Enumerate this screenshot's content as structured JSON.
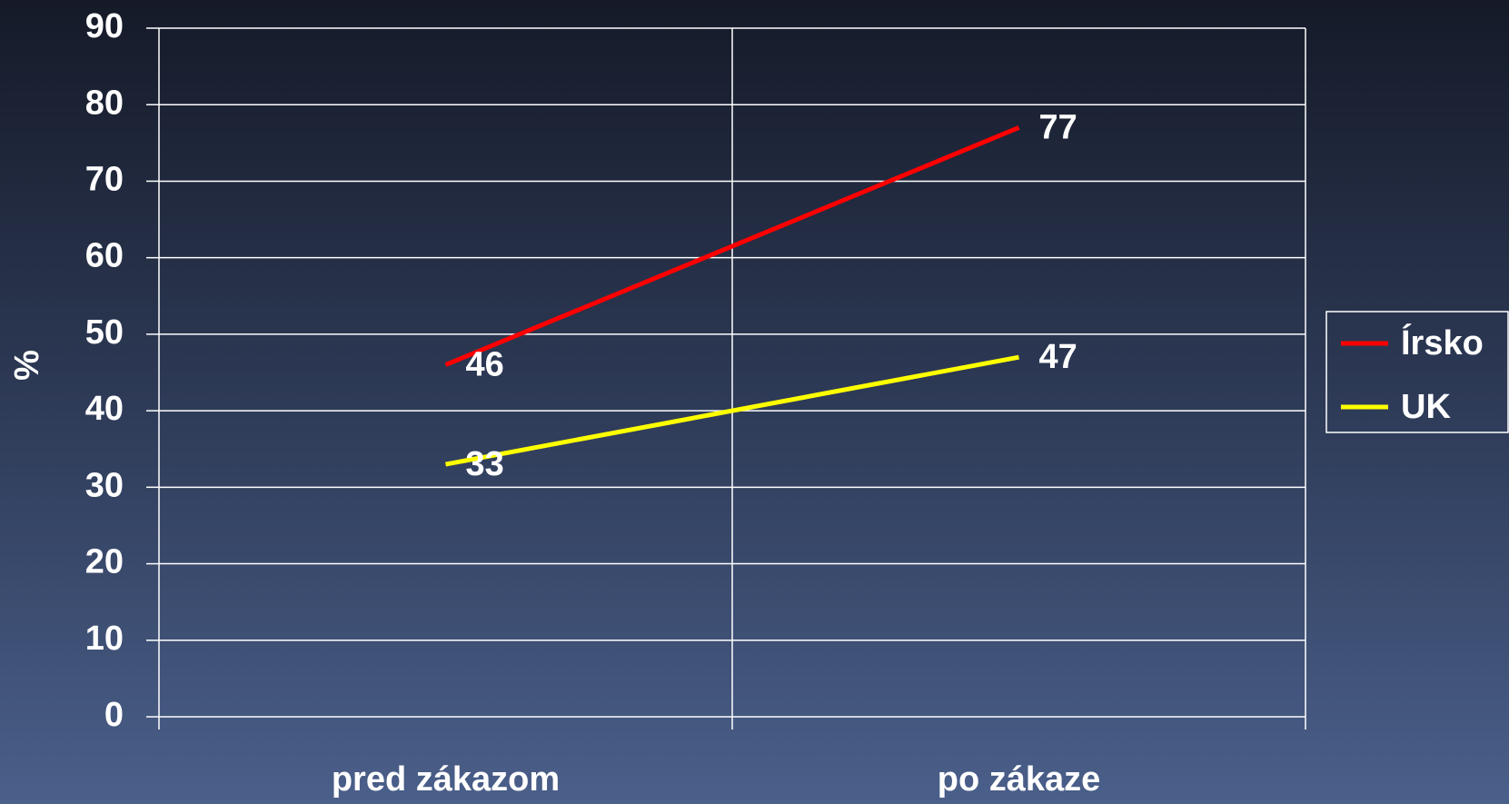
{
  "chart_data": {
    "type": "line",
    "categories": [
      "pred zákazom",
      "po zákaze"
    ],
    "series": [
      {
        "name": "Írsko",
        "color": "#ff0000",
        "values": [
          46,
          77
        ]
      },
      {
        "name": "UK",
        "color": "#ffff00",
        "values": [
          33,
          47
        ]
      }
    ],
    "ylabel": "%",
    "ylim": [
      0,
      90
    ],
    "yticks": [
      0,
      10,
      20,
      30,
      40,
      50,
      60,
      70,
      80,
      90
    ],
    "grid": true,
    "legend": "right"
  }
}
